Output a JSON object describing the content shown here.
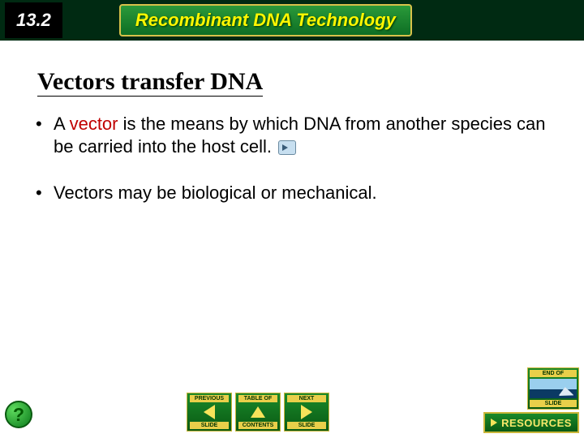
{
  "header": {
    "section_number": "13.2",
    "chapter_title": "Recombinant DNA Technology",
    "banner_bg": "#002a12",
    "title_box_border": "#d7c24a",
    "title_text_color": "#fff701"
  },
  "slide": {
    "title": "Vectors transfer DNA",
    "bullets": [
      {
        "prefix": "A ",
        "highlight": "vector",
        "rest": " is the means by which DNA from another species can be carried into the host cell.",
        "has_audio_icon": true
      },
      {
        "prefix": "",
        "highlight": "",
        "rest": "Vectors may be biological or mechanical.",
        "has_audio_icon": false
      }
    ],
    "highlight_color": "#c00000"
  },
  "footer": {
    "help_symbol": "?",
    "nav": {
      "prev": {
        "top": "PREVIOUS",
        "bottom": "SLIDE"
      },
      "contents": {
        "top": "TABLE OF",
        "bottom": "CONTENTS"
      },
      "next": {
        "top": "NEXT",
        "bottom": "SLIDE"
      }
    },
    "end_slide": {
      "top": "END OF",
      "bottom": "SLIDE"
    },
    "resources_label": "RESOURCES"
  },
  "colors": {
    "nav_gradient_top": "#1a8a2a",
    "nav_gradient_bottom": "#0a5a14",
    "nav_accent": "#e9cf4a",
    "nav_arrow": "#f7e35a"
  }
}
